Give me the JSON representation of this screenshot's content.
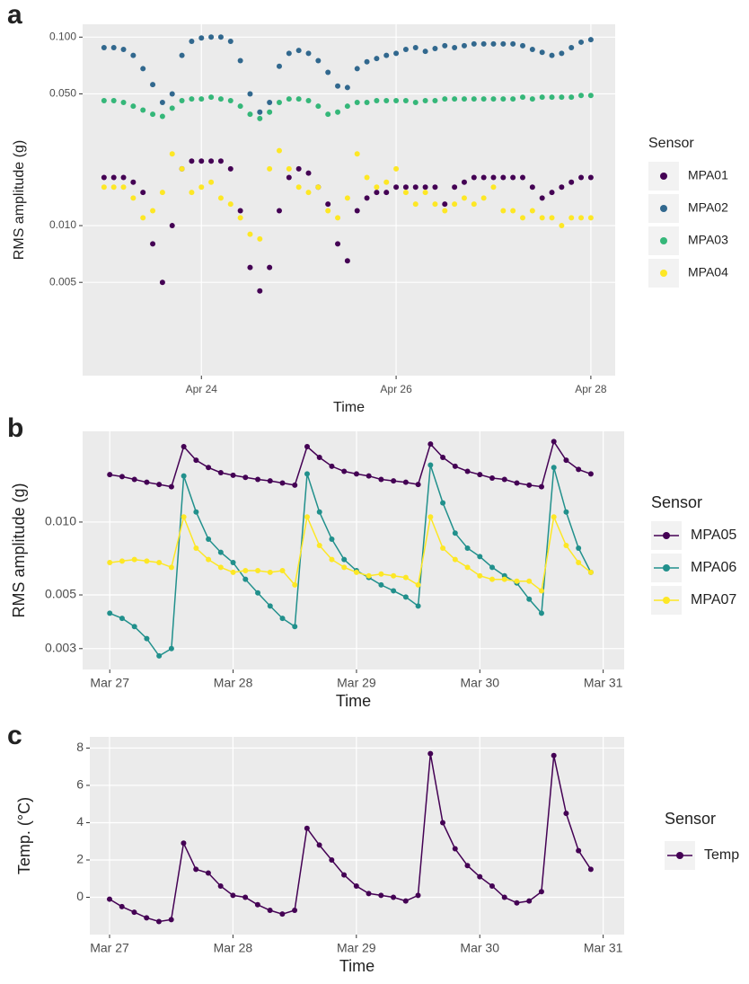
{
  "chart_data": [
    {
      "type": "scatter",
      "panel_label": "a",
      "x_label": "Time",
      "y_label": "RMS amplitude (g)",
      "legend_title": "Sensor",
      "legend": "right",
      "grid": true,
      "log_y": true,
      "xlim": [
        22.78,
        28.25
      ],
      "ylim": [
        0.0016,
        0.117
      ],
      "xticks": [
        {
          "value": 24,
          "label": "Apr 24"
        },
        {
          "value": 26,
          "label": "Apr 26"
        },
        {
          "value": 28,
          "label": "Apr 28"
        }
      ],
      "yticks": [
        0.005,
        {
          "value": 0.01,
          "label": "0.010"
        },
        {
          "value": 0.05,
          "label": "0.050"
        },
        {
          "value": 0.1,
          "label": "0.100"
        }
      ],
      "x": [
        23,
        23.1,
        23.2,
        23.3,
        23.4,
        23.5,
        23.6,
        23.7,
        23.8,
        23.9,
        24,
        24.1,
        24.2,
        24.3,
        24.4,
        24.5,
        24.6,
        24.7,
        24.8,
        24.9,
        25,
        25.1,
        25.2,
        25.3,
        25.4,
        25.5,
        25.6,
        25.7,
        25.8,
        25.9,
        26,
        26.1,
        26.2,
        26.3,
        26.4,
        26.5,
        26.6,
        26.7,
        26.8,
        26.9,
        27,
        27.1,
        27.2,
        27.3,
        27.4,
        27.5,
        27.6,
        27.7,
        27.8,
        27.9,
        28
      ],
      "series": [
        {
          "name": "MPA01",
          "color": "#440154",
          "values": [
            0.018,
            0.018,
            0.018,
            0.017,
            0.015,
            0.008,
            0.005,
            0.01,
            0.02,
            0.022,
            0.022,
            0.022,
            0.022,
            0.02,
            0.012,
            0.006,
            0.0045,
            0.006,
            0.012,
            0.018,
            0.02,
            0.019,
            0.016,
            0.013,
            0.008,
            0.0065,
            0.012,
            0.014,
            0.015,
            0.015,
            0.016,
            0.016,
            0.016,
            0.016,
            0.016,
            0.013,
            0.016,
            0.017,
            0.018,
            0.018,
            0.018,
            0.018,
            0.018,
            0.018,
            0.016,
            0.014,
            0.015,
            0.016,
            0.017,
            0.018,
            0.018
          ]
        },
        {
          "name": "MPA02",
          "color": "#31688e",
          "values": [
            0.088,
            0.088,
            0.086,
            0.08,
            0.068,
            0.056,
            0.045,
            0.05,
            0.08,
            0.095,
            0.099,
            0.1,
            0.1,
            0.095,
            0.075,
            0.05,
            0.04,
            0.045,
            0.07,
            0.082,
            0.085,
            0.082,
            0.075,
            0.065,
            0.055,
            0.054,
            0.068,
            0.074,
            0.077,
            0.08,
            0.082,
            0.086,
            0.088,
            0.084,
            0.087,
            0.09,
            0.088,
            0.09,
            0.092,
            0.092,
            0.092,
            0.092,
            0.092,
            0.09,
            0.086,
            0.083,
            0.08,
            0.082,
            0.088,
            0.094,
            0.097
          ]
        },
        {
          "name": "MPA03",
          "color": "#35b779",
          "values": [
            0.046,
            0.046,
            0.045,
            0.043,
            0.041,
            0.039,
            0.038,
            0.042,
            0.046,
            0.047,
            0.047,
            0.048,
            0.047,
            0.046,
            0.043,
            0.039,
            0.037,
            0.04,
            0.045,
            0.047,
            0.047,
            0.046,
            0.043,
            0.039,
            0.04,
            0.043,
            0.045,
            0.045,
            0.046,
            0.046,
            0.046,
            0.046,
            0.045,
            0.046,
            0.046,
            0.047,
            0.047,
            0.047,
            0.047,
            0.047,
            0.047,
            0.047,
            0.047,
            0.048,
            0.047,
            0.048,
            0.048,
            0.048,
            0.048,
            0.049,
            0.049
          ]
        },
        {
          "name": "MPA04",
          "color": "#fde725",
          "values": [
            0.016,
            0.016,
            0.016,
            0.014,
            0.011,
            0.012,
            0.015,
            0.024,
            0.02,
            0.015,
            0.016,
            0.017,
            0.014,
            0.013,
            0.011,
            0.009,
            0.0085,
            0.02,
            0.025,
            0.02,
            0.016,
            0.015,
            0.016,
            0.012,
            0.011,
            0.014,
            0.024,
            0.018,
            0.016,
            0.017,
            0.02,
            0.015,
            0.013,
            0.015,
            0.013,
            0.012,
            0.013,
            0.014,
            0.013,
            0.014,
            0.016,
            0.012,
            0.012,
            0.011,
            0.012,
            0.011,
            0.011,
            0.01,
            0.011,
            0.011,
            0.011
          ]
        }
      ]
    },
    {
      "type": "line",
      "panel_label": "b",
      "x_label": "Time",
      "y_label": "RMS amplitude (g)",
      "legend_title": "Sensor",
      "legend": "right",
      "grid": true,
      "log_y": true,
      "xlim": [
        26.78,
        31.17
      ],
      "ylim": [
        0.00246,
        0.0237
      ],
      "xticks": [
        {
          "value": 27,
          "label": "Mar 27"
        },
        {
          "value": 28,
          "label": "Mar 28"
        },
        {
          "value": 29,
          "label": "Mar 29"
        },
        {
          "value": 30,
          "label": "Mar 30"
        },
        {
          "value": 31,
          "label": "Mar 31"
        }
      ],
      "yticks": [
        0.003,
        0.005,
        {
          "value": 0.01,
          "label": "0.010"
        }
      ],
      "x": [
        27,
        27.1,
        27.2,
        27.3,
        27.4,
        27.5,
        27.6,
        27.7,
        27.8,
        27.9,
        28,
        28.1,
        28.2,
        28.3,
        28.4,
        28.5,
        28.6,
        28.7,
        28.8,
        28.9,
        29,
        29.1,
        29.2,
        29.3,
        29.4,
        29.5,
        29.6,
        29.7,
        29.8,
        29.9,
        30,
        30.1,
        30.2,
        30.3,
        30.4,
        30.5,
        30.6,
        30.7,
        30.8,
        30.9
      ],
      "series": [
        {
          "name": "MPA05",
          "color": "#440154",
          "values": [
            0.0157,
            0.0154,
            0.015,
            0.0146,
            0.0143,
            0.014,
            0.0205,
            0.018,
            0.0168,
            0.016,
            0.0156,
            0.0153,
            0.015,
            0.0148,
            0.0145,
            0.0142,
            0.0205,
            0.0185,
            0.017,
            0.0162,
            0.0158,
            0.0155,
            0.015,
            0.0148,
            0.0146,
            0.0143,
            0.021,
            0.0185,
            0.017,
            0.0162,
            0.0157,
            0.0152,
            0.015,
            0.0145,
            0.0142,
            0.014,
            0.0215,
            0.018,
            0.0165,
            0.0158
          ]
        },
        {
          "name": "MPA06",
          "color": "#21908c",
          "values": [
            0.0042,
            0.004,
            0.0037,
            0.0033,
            0.0028,
            0.003,
            0.0155,
            0.011,
            0.0085,
            0.0075,
            0.0068,
            0.0058,
            0.0051,
            0.0045,
            0.004,
            0.0037,
            0.0158,
            0.011,
            0.0085,
            0.007,
            0.0063,
            0.0059,
            0.0055,
            0.0052,
            0.0049,
            0.0045,
            0.0172,
            0.012,
            0.009,
            0.0078,
            0.0072,
            0.0065,
            0.006,
            0.0056,
            0.0048,
            0.0042,
            0.0168,
            0.011,
            0.0078,
            0.0062
          ]
        },
        {
          "name": "MPA07",
          "color": "#fde725",
          "values": [
            0.0068,
            0.0069,
            0.007,
            0.0069,
            0.0068,
            0.0065,
            0.0105,
            0.0078,
            0.007,
            0.0065,
            0.0062,
            0.0063,
            0.0063,
            0.0062,
            0.0063,
            0.0055,
            0.0105,
            0.008,
            0.007,
            0.0065,
            0.0062,
            0.006,
            0.0061,
            0.006,
            0.0059,
            0.0055,
            0.0105,
            0.0078,
            0.007,
            0.0065,
            0.006,
            0.0058,
            0.0058,
            0.0057,
            0.0057,
            0.0052,
            0.0105,
            0.008,
            0.0068,
            0.0062
          ]
        }
      ]
    },
    {
      "type": "line",
      "panel_label": "c",
      "x_label": "Time",
      "y_label": "Temp. (°C)",
      "legend_title": "Sensor",
      "legend": "right",
      "grid": true,
      "log_y": false,
      "xlim": [
        26.84,
        31.17
      ],
      "ylim": [
        -2,
        8.6
      ],
      "xticks": [
        {
          "value": 27,
          "label": "Mar 27"
        },
        {
          "value": 28,
          "label": "Mar 28"
        },
        {
          "value": 29,
          "label": "Mar 29"
        },
        {
          "value": 30,
          "label": "Mar 30"
        },
        {
          "value": 31,
          "label": "Mar 31"
        }
      ],
      "yticks": [
        0,
        2,
        4,
        6,
        8
      ],
      "x": [
        27,
        27.1,
        27.2,
        27.3,
        27.4,
        27.5,
        27.6,
        27.7,
        27.8,
        27.9,
        28,
        28.1,
        28.2,
        28.3,
        28.4,
        28.5,
        28.6,
        28.7,
        28.8,
        28.9,
        29,
        29.1,
        29.2,
        29.3,
        29.4,
        29.5,
        29.6,
        29.7,
        29.8,
        29.9,
        30,
        30.1,
        30.2,
        30.3,
        30.4,
        30.5,
        30.6,
        30.7,
        30.8,
        30.9
      ],
      "series": [
        {
          "name": "Temp",
          "color": "#440154",
          "values": [
            -0.1,
            -0.5,
            -0.8,
            -1.1,
            -1.3,
            -1.2,
            2.9,
            1.5,
            1.3,
            0.6,
            0.1,
            0,
            -0.4,
            -0.7,
            -0.9,
            -0.7,
            3.7,
            2.8,
            2,
            1.2,
            0.6,
            0.2,
            0.1,
            0,
            -0.2,
            0.1,
            7.7,
            4,
            2.6,
            1.7,
            1.1,
            0.6,
            0,
            -0.3,
            -0.2,
            0.3,
            7.6,
            4.5,
            2.5,
            1.5
          ]
        }
      ]
    }
  ]
}
